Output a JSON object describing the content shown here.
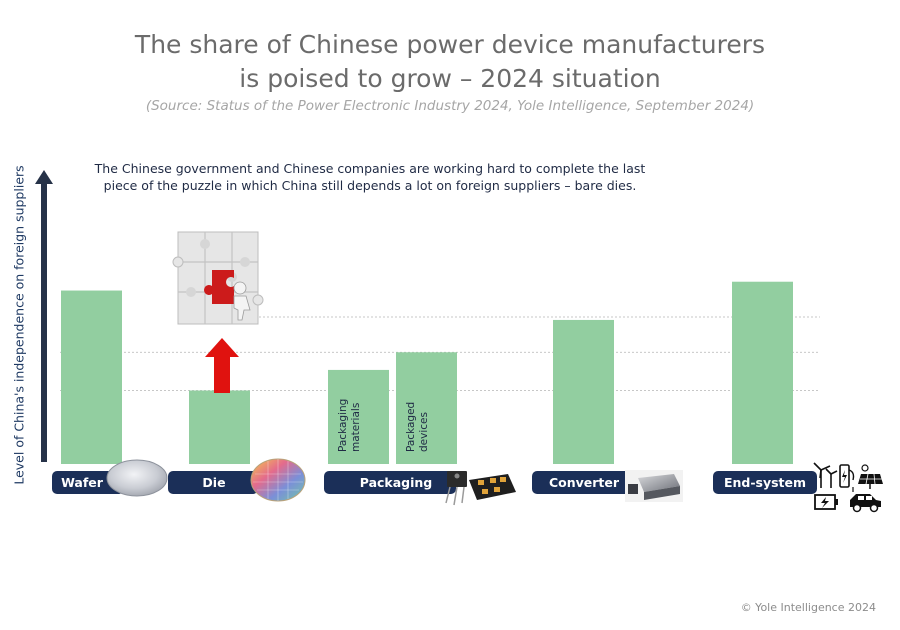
{
  "title_line1": "The share of Chinese power device manufacturers",
  "title_line2": "is poised to grow – 2024 situation",
  "source": "(Source: Status of the Power Electronic Industry 2024, Yole Intelligence, September 2024)",
  "annotation_line1": "The Chinese government and Chinese companies are working hard to complete the last",
  "annotation_line2": "piece of the puzzle in which China still depends a lot on foreign suppliers – bare dies.",
  "footer": "© Yole Intelligence 2024",
  "colors": {
    "bar": "#92cea0",
    "pill": "#1b2f58",
    "arrow": "#e0120f",
    "axis": "#263248"
  },
  "chart_data": {
    "type": "bar",
    "ylabel": "Level of China's independence on foreign suppliers",
    "ylim": [
      0,
      100
    ],
    "bars": [
      {
        "group": "Wafer",
        "value": 59,
        "label": ""
      },
      {
        "group": "Die",
        "value": 25,
        "label": ""
      },
      {
        "group": "Packaging",
        "value": 32,
        "label": "Packaging materials"
      },
      {
        "group": "Packaging",
        "value": 38,
        "label": "Packaged devices"
      },
      {
        "group": "Converter",
        "value": 49,
        "label": ""
      },
      {
        "group": "End-system",
        "value": 62,
        "label": ""
      }
    ],
    "categories": [
      "Wafer",
      "Die",
      "Packaging",
      "Converter",
      "End-system"
    ],
    "reference_lines": [
      50,
      38,
      25
    ]
  }
}
